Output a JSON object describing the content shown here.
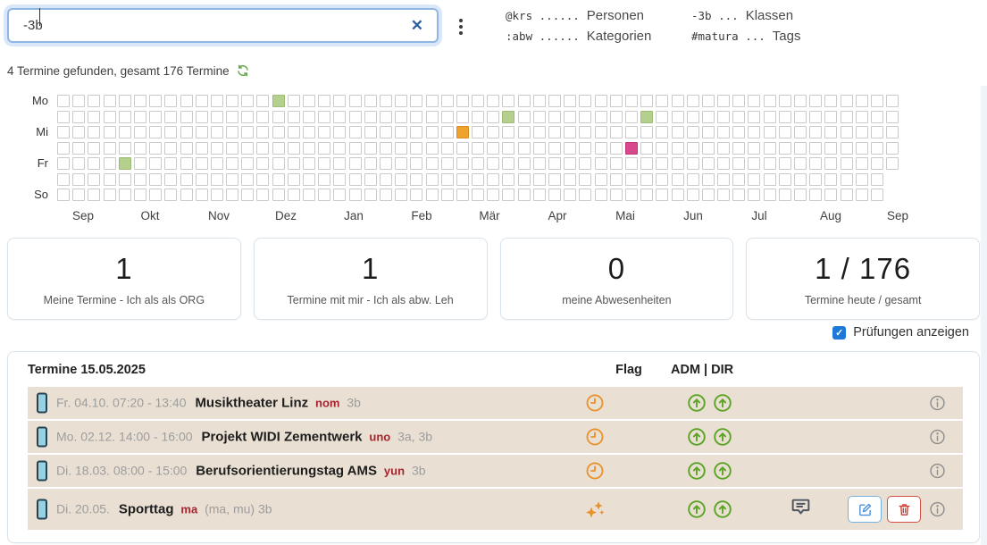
{
  "search": {
    "value": "-3b",
    "clear_icon": "x-clear-icon",
    "menu_icon": "kebab-menu-icon"
  },
  "legend": {
    "items": [
      {
        "code": "@krs",
        "dots": "......",
        "label": "Personen"
      },
      {
        "code": "-3b",
        "dots": "...",
        "label": "Klassen"
      },
      {
        "code": ":abw",
        "dots": "......",
        "label": "Kategorien"
      },
      {
        "code": "#matura",
        "dots": "...",
        "label": "Tags"
      }
    ]
  },
  "results_summary": "4 Termine gefunden, gesamt 176 Termine",
  "refresh_icon": "refresh-icon",
  "heatmap": {
    "day_labels": [
      "Mo",
      "",
      "Mi",
      "",
      "Fr",
      "",
      "So"
    ],
    "month_labels": [
      "Sep",
      "Okt",
      "Nov",
      "Dez",
      "Jan",
      "Feb",
      "Mär",
      "Apr",
      "Mai",
      "Jun",
      "Jul",
      "Aug",
      "Sep"
    ],
    "weeks": 55,
    "short_rows": [
      5,
      6
    ],
    "marked_cells": [
      {
        "row": 0,
        "col": 14,
        "color": "green"
      },
      {
        "row": 1,
        "col": 29,
        "color": "green"
      },
      {
        "row": 1,
        "col": 38,
        "color": "green"
      },
      {
        "row": 2,
        "col": 26,
        "color": "orange"
      },
      {
        "row": 3,
        "col": 37,
        "color": "pink"
      },
      {
        "row": 4,
        "col": 4,
        "color": "green"
      }
    ],
    "colors": {
      "green": "#b4cf8e",
      "orange": "#eda32e",
      "pink": "#d7498c"
    }
  },
  "stats": [
    {
      "value": "1",
      "label": "Meine Termine - Ich als als ORG"
    },
    {
      "value": "1",
      "label": "Termine mit mir - Ich als abw. Leh"
    },
    {
      "value": "0",
      "label": "meine Abwesenheiten"
    },
    {
      "value": "1 / 176",
      "label": "Termine heute / gesamt"
    }
  ],
  "exams_checkbox": {
    "label": "Prüfungen anzeigen",
    "checked": true
  },
  "table": {
    "title": "Termine 15.05.2025",
    "columns": {
      "flag": "Flag",
      "adm_dir": "ADM | DIR"
    },
    "rows": [
      {
        "datetime": "Fr. 04.10. 07:20 - 13:40",
        "title": "Musiktheater Linz",
        "code": "nom",
        "classes": "3b",
        "flag": "clock",
        "actions": false
      },
      {
        "datetime": "Mo. 02.12. 14:00 - 16:00",
        "title": "Projekt WIDI Zementwerk",
        "code": "uno",
        "classes": "3a, 3b",
        "flag": "clock",
        "actions": false
      },
      {
        "datetime": "Di. 18.03. 08:00 - 15:00",
        "title": "Berufsorientierungstag AMS",
        "code": "yun",
        "classes": "3b",
        "flag": "clock",
        "actions": false
      },
      {
        "datetime": "Di. 20.05.",
        "title": "Sporttag",
        "code": "ma",
        "classes": "(ma, mu) 3b",
        "flag": "sparkles",
        "actions": true
      }
    ]
  }
}
